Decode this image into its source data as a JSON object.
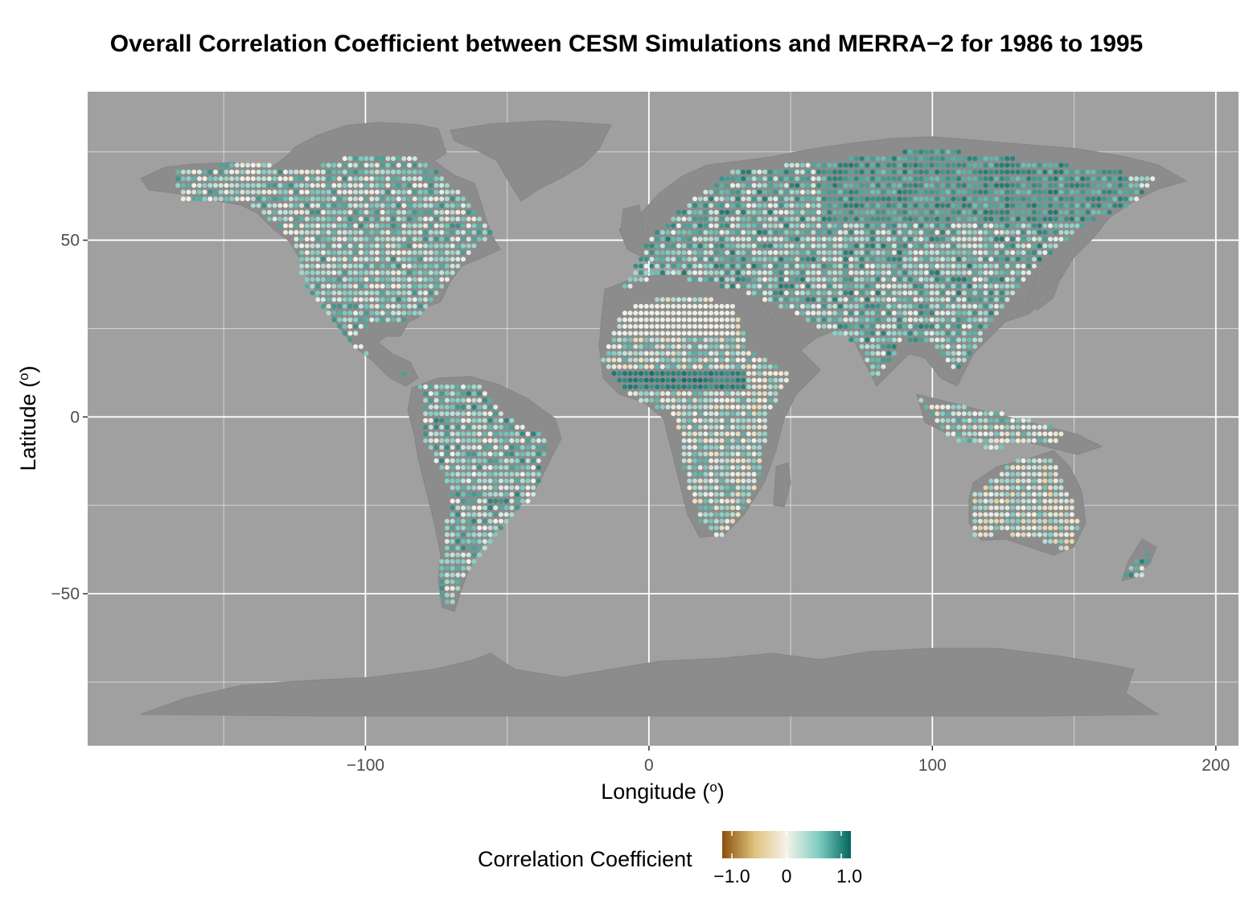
{
  "title": "Overall Correlation Coefficient between CESM Simulations and MERRA−2 for 1986 to 1995",
  "chart_data": {
    "type": "map",
    "xlabel": "Longitude (o)",
    "ylabel": "Latitude (o)",
    "x_ticks": [
      "−100",
      "0",
      "100",
      "200"
    ],
    "x_tick_values": [
      -100,
      0,
      100,
      200
    ],
    "y_ticks": [
      "−50",
      "0",
      "50"
    ],
    "y_tick_values": [
      -50,
      0,
      50
    ],
    "xlim": [
      -198,
      208
    ],
    "ylim": [
      -93,
      92
    ],
    "grid": true,
    "legend": {
      "title": "Correlation Coefficient",
      "placement": "bottom",
      "ticks": [
        "−1.0",
        "0",
        "1.0"
      ],
      "tick_values": [
        -1.0,
        0,
        1.0
      ]
    },
    "colors": {
      "panel_bg": "#a0a0a0",
      "land": "#8c8c8c",
      "grid": "#ffffff",
      "negative": "#8c510a",
      "mid_negative": "#dfc27d",
      "neutral": "#f5f2ea",
      "mid_positive": "#80cdc1",
      "positive": "#01665e"
    }
  }
}
